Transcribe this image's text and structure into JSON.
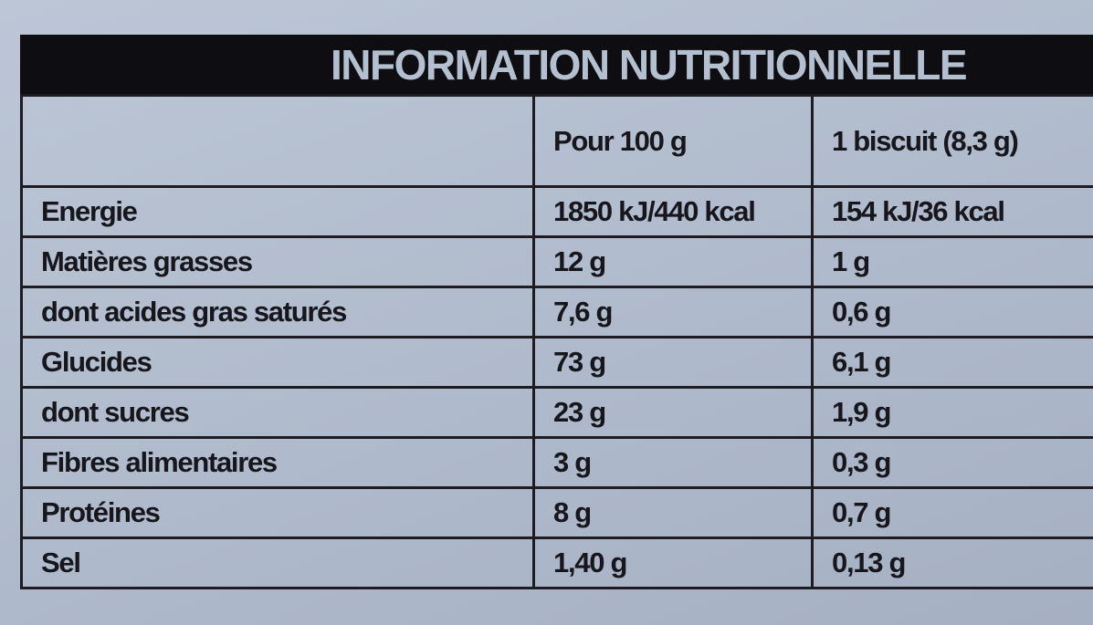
{
  "header": {
    "title": "INFORMATION NUTRITIONNELLE"
  },
  "table": {
    "headers": [
      "Pour 100 g",
      "1 biscuit (8,3 g)"
    ],
    "rows": [
      [
        "Energie",
        "1850 kJ/440 kcal",
        "154 kJ/36 kcal"
      ],
      [
        "Matières grasses",
        "12 g",
        "1 g"
      ],
      [
        "dont acides gras saturés",
        "7,6 g",
        "0,6 g"
      ],
      [
        "Glucides",
        "73 g",
        "6,1 g"
      ],
      [
        "dont sucres",
        "23 g",
        "1,9 g"
      ],
      [
        "Fibres alimentaires",
        "3 g",
        "0,3 g"
      ],
      [
        "Protéines",
        "8 g",
        "0,7 g"
      ],
      [
        "Sel",
        "1,40 g",
        "0,13 g"
      ]
    ]
  }
}
